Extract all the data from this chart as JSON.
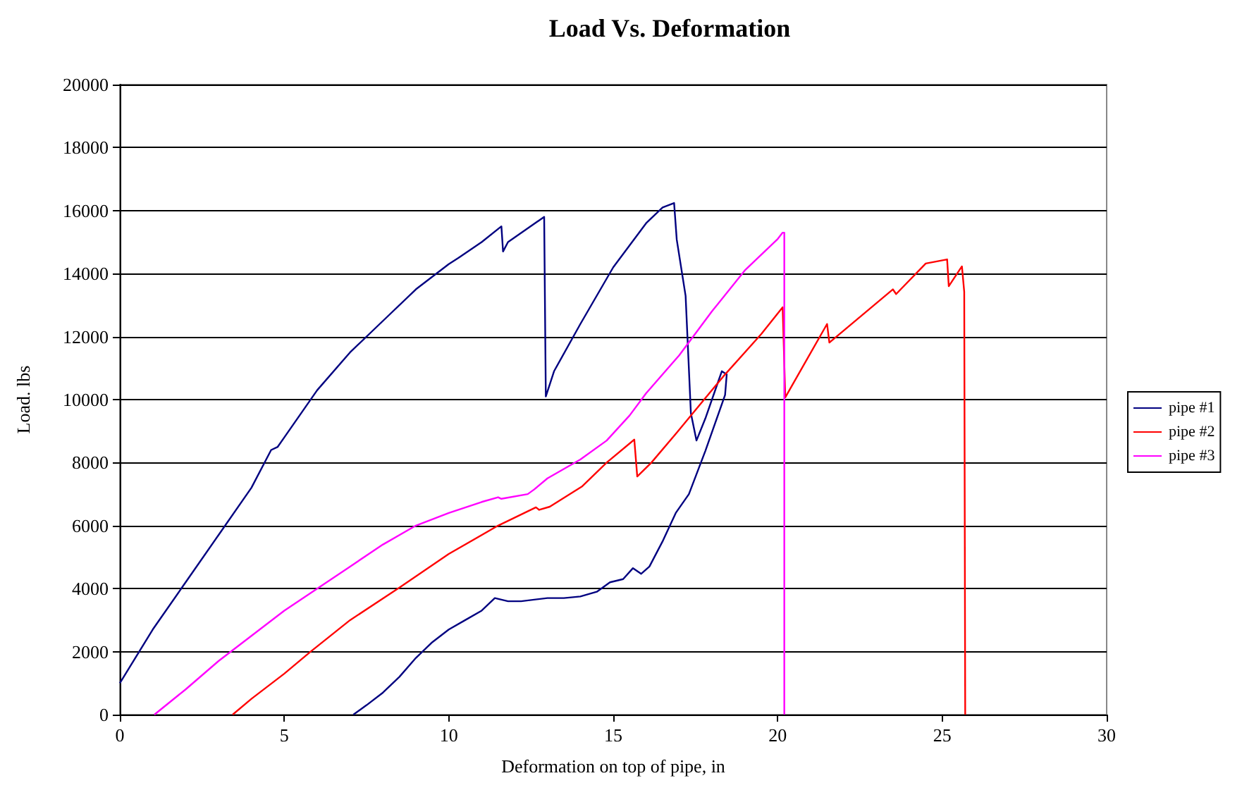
{
  "chart_data": {
    "type": "line",
    "title": "Load Vs. Deformation",
    "xlabel": "Deformation on top of pipe, in",
    "ylabel": "Load. lbs",
    "xlim": [
      0,
      30
    ],
    "xticks": [
      0,
      5,
      10,
      15,
      20,
      25,
      30
    ],
    "ylim": [
      0,
      20000
    ],
    "yticks": [
      0,
      2000,
      4000,
      6000,
      8000,
      10000,
      12000,
      14000,
      16000,
      18000,
      20000
    ],
    "grid": "y",
    "legend": "right",
    "series": [
      {
        "name": "pipe #1",
        "color": "#000080",
        "x": [
          0,
          1,
          2,
          3,
          4,
          4.6,
          4.8,
          5,
          6,
          7,
          8,
          9,
          10,
          10.3,
          11,
          11.6,
          11.65,
          11.8,
          12.9,
          12.95,
          13.2,
          14,
          15,
          16,
          16.5,
          16.85,
          16.93,
          17.2,
          17.36,
          17.53,
          17.8,
          18.3,
          18.45,
          18.4,
          17.8,
          17.3,
          16.9,
          16.5,
          16.1,
          15.85,
          15.6,
          15.3,
          14.9,
          14.5,
          14,
          13.5,
          13,
          12.2,
          11.8,
          11.4,
          11,
          10.5,
          10,
          9.5,
          9,
          8.5,
          8,
          7.5,
          7.1
        ],
        "values": [
          1000,
          2700,
          4200,
          5700,
          7200,
          8400,
          8500,
          8800,
          10300,
          11500,
          12500,
          13500,
          14300,
          14500,
          15000,
          15500,
          14700,
          15000,
          15800,
          10100,
          10900,
          12400,
          14200,
          15600,
          16100,
          16240,
          15080,
          13290,
          9570,
          8700,
          9400,
          10900,
          10800,
          10150,
          8370,
          7000,
          6400,
          5500,
          4700,
          4470,
          4650,
          4300,
          4200,
          3900,
          3750,
          3700,
          3700,
          3600,
          3600,
          3700,
          3300,
          3000,
          2700,
          2300,
          1800,
          1200,
          700,
          300,
          0
        ]
      },
      {
        "name": "pipe #2",
        "color": "#ff0000",
        "x": [
          3.43,
          4,
          5,
          5.8,
          7,
          8.5,
          10,
          11.5,
          12.65,
          12.75,
          13.07,
          14.06,
          14.8,
          15.64,
          15.73,
          16.16,
          16.93,
          18.35,
          19.5,
          20.15,
          20.23,
          21.5,
          21.57,
          23.5,
          23.6,
          24.5,
          25.15,
          25.2,
          25.6,
          25.67,
          25.7
        ],
        "values": [
          0,
          500,
          1300,
          2000,
          3000,
          4030,
          5100,
          6000,
          6580,
          6500,
          6600,
          7250,
          8000,
          8730,
          7560,
          8000,
          8950,
          10740,
          12080,
          12930,
          10070,
          12400,
          11810,
          13500,
          13350,
          14320,
          14450,
          13600,
          14230,
          13420,
          0
        ]
      },
      {
        "name": "pipe #3",
        "color": "#ff00ff",
        "x": [
          1.05,
          2,
          3,
          4,
          5,
          6,
          7,
          8,
          9,
          10,
          11,
          11.5,
          11.6,
          12.4,
          12.6,
          13,
          14,
          14.8,
          15.5,
          16,
          17,
          18,
          19,
          20,
          20.15,
          20.2,
          20.2
        ],
        "values": [
          0,
          800,
          1700,
          2500,
          3300,
          4000,
          4700,
          5400,
          6000,
          6400,
          6750,
          6900,
          6850,
          7000,
          7150,
          7500,
          8100,
          8700,
          9500,
          10200,
          11400,
          12800,
          14100,
          15100,
          15300,
          15300,
          0
        ]
      }
    ]
  }
}
